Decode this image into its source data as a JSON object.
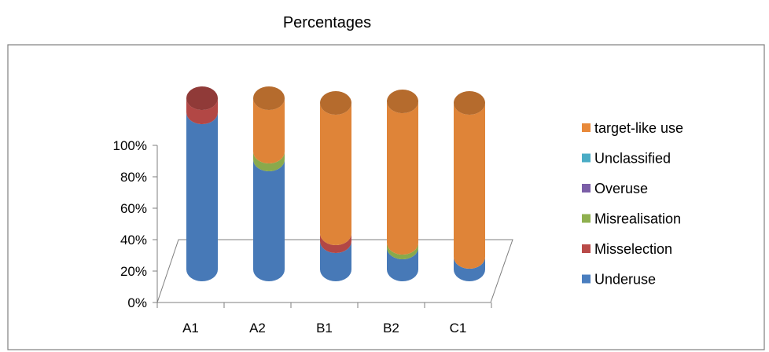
{
  "chart_data": {
    "type": "bar",
    "title": "Percentages",
    "categories": [
      "A1",
      "A2",
      "B1",
      "B2",
      "C1"
    ],
    "ylim": [
      0,
      100
    ],
    "yticks": [
      "0%",
      "20%",
      "40%",
      "60%",
      "80%",
      "100%"
    ],
    "legend_position": "right",
    "grid": false,
    "series": [
      {
        "name": "Underuse",
        "color": "#4a7ebf",
        "values": [
          100,
          70,
          18,
          14,
          8
        ]
      },
      {
        "name": "Misselection",
        "color": "#b94a48",
        "values": [
          9,
          0,
          5,
          0,
          0
        ]
      },
      {
        "name": "Misrealisation",
        "color": "#8fb04f",
        "values": [
          0,
          5,
          0,
          3,
          0
        ]
      },
      {
        "name": "Overuse",
        "color": "#7b5ea7",
        "values": [
          0,
          0,
          0,
          0,
          0
        ]
      },
      {
        "name": "Unclassified",
        "color": "#4aacc5",
        "values": [
          0,
          0,
          0,
          0,
          0
        ]
      },
      {
        "name": "target-like use",
        "color": "#e8893a",
        "values": [
          0,
          34,
          83,
          90,
          98
        ]
      }
    ]
  }
}
